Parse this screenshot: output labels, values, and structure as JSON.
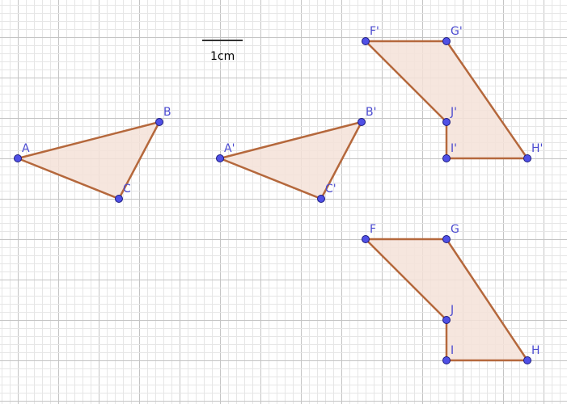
{
  "scale_bar": {
    "label": "1cm"
  },
  "colors": {
    "edge": "#b5683c",
    "fill": "#f4e2d8",
    "point": "#5050e6",
    "point_stroke": "#1a1a80",
    "label": "#4b4bd0",
    "grid_major": "#c4c4c4",
    "grid_minor": "#e6e6e6",
    "scale_bar": "#333333"
  },
  "shapes": [
    {
      "name": "triangle-abc",
      "vertices": [
        {
          "label": "A",
          "x": 0,
          "y": 0
        },
        {
          "label": "B",
          "x": 3.5,
          "y": 0.9
        },
        {
          "label": "C",
          "x": 2.5,
          "y": -1
        }
      ]
    },
    {
      "name": "triangle-abc-image",
      "vertices": [
        {
          "label": "A'",
          "x": 5,
          "y": 0
        },
        {
          "label": "B'",
          "x": 8.5,
          "y": 0.9
        },
        {
          "label": "C'",
          "x": 7.5,
          "y": -1
        }
      ]
    },
    {
      "name": "hexagon-fghij-image",
      "vertices": [
        {
          "label": "F'",
          "x": 8.6,
          "y": 2.9
        },
        {
          "label": "G'",
          "x": 10.6,
          "y": 2.9
        },
        {
          "label": "H'",
          "x": 12.6,
          "y": 0
        },
        {
          "label": "I'",
          "x": 10.6,
          "y": 0
        },
        {
          "label": "J'",
          "x": 10.6,
          "y": 0.9
        }
      ]
    },
    {
      "name": "hexagon-fghij",
      "vertices": [
        {
          "label": "F",
          "x": 8.6,
          "y": -2
        },
        {
          "label": "G",
          "x": 10.6,
          "y": -2
        },
        {
          "label": "H",
          "x": 12.6,
          "y": -5
        },
        {
          "label": "I",
          "x": 10.6,
          "y": -5
        },
        {
          "label": "J",
          "x": 10.6,
          "y": -4
        }
      ]
    }
  ]
}
